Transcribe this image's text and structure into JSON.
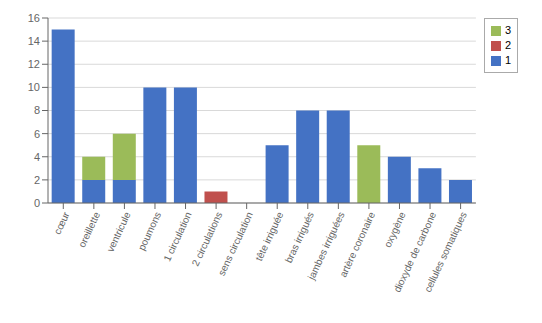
{
  "chart_data": {
    "type": "bar",
    "stacked": true,
    "categories": [
      "cœur",
      "oreillette",
      "ventricule",
      "poumons",
      "1 circulation",
      "2 circulations",
      "sens circulation",
      "tête irriguée",
      "bras irrigués",
      "jambes irriguées",
      "artère coronaire",
      "oxygène",
      "dioxyde de carbone",
      "cellules somatiques"
    ],
    "series": [
      {
        "name": "1",
        "color": "#4472C4",
        "values": [
          15,
          2,
          2,
          10,
          10,
          0,
          0,
          5,
          8,
          8,
          0,
          4,
          3,
          2
        ]
      },
      {
        "name": "2",
        "color": "#C0504D",
        "values": [
          0,
          0,
          0,
          0,
          0,
          1,
          0,
          0,
          0,
          0,
          0,
          0,
          0,
          0
        ]
      },
      {
        "name": "3",
        "color": "#9BBB59",
        "values": [
          0,
          2,
          4,
          0,
          0,
          0,
          0,
          0,
          0,
          0,
          5,
          0,
          0,
          0
        ]
      }
    ],
    "ylim": [
      0,
      16
    ],
    "yticks": [
      0,
      2,
      4,
      6,
      8,
      10,
      12,
      14,
      16
    ],
    "grid": true,
    "legend": "upper right"
  }
}
